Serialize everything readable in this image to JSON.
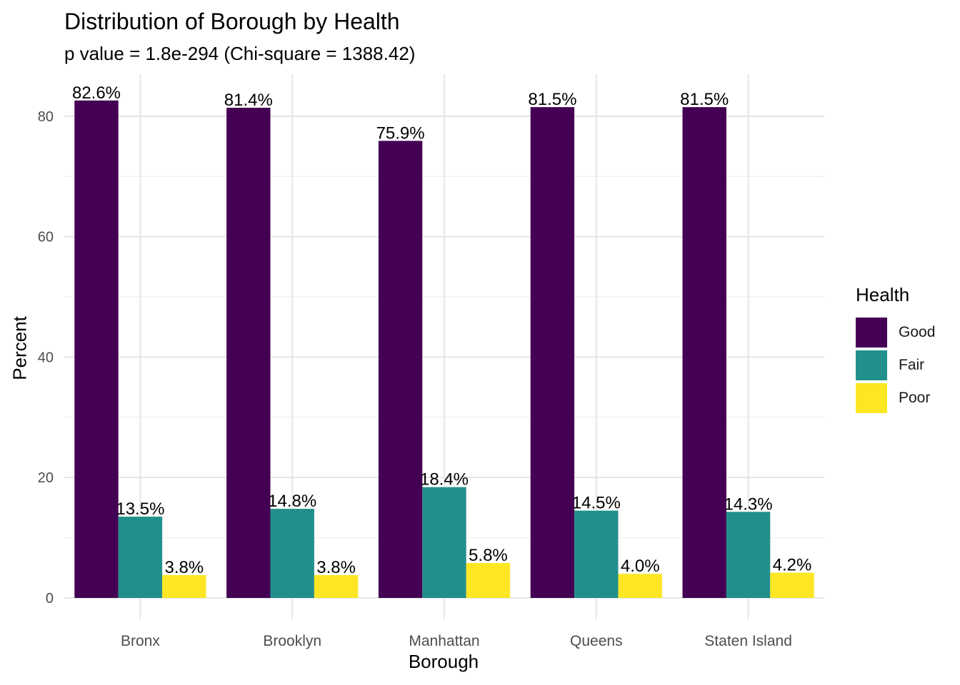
{
  "chart_data": {
    "type": "bar",
    "title": "Distribution of Borough by Health",
    "subtitle": "p value = 1.8e-294 (Chi-square = 1388.42)",
    "xlabel": "Borough",
    "ylabel": "Percent",
    "categories": [
      "Bronx",
      "Brooklyn",
      "Manhattan",
      "Queens",
      "Staten Island"
    ],
    "series": [
      {
        "name": "Good",
        "color": "#440154",
        "values": [
          82.6,
          81.4,
          75.9,
          81.5,
          81.5
        ],
        "labels": [
          "82.6%",
          "81.4%",
          "75.9%",
          "81.5%",
          "81.5%"
        ]
      },
      {
        "name": "Fair",
        "color": "#21908C",
        "values": [
          13.5,
          14.8,
          18.4,
          14.5,
          14.3
        ],
        "labels": [
          "13.5%",
          "14.8%",
          "18.4%",
          "14.5%",
          "14.3%"
        ]
      },
      {
        "name": "Poor",
        "color": "#FDE725",
        "values": [
          3.8,
          3.8,
          5.8,
          4.0,
          4.2
        ],
        "labels": [
          "3.8%",
          "3.8%",
          "5.8%",
          "4.0%",
          "4.2%"
        ]
      }
    ],
    "yticks": [
      0,
      20,
      40,
      60,
      80
    ],
    "ylim": [
      0,
      86
    ],
    "legend_title": "Health",
    "legend_position": "right",
    "grid": true
  }
}
